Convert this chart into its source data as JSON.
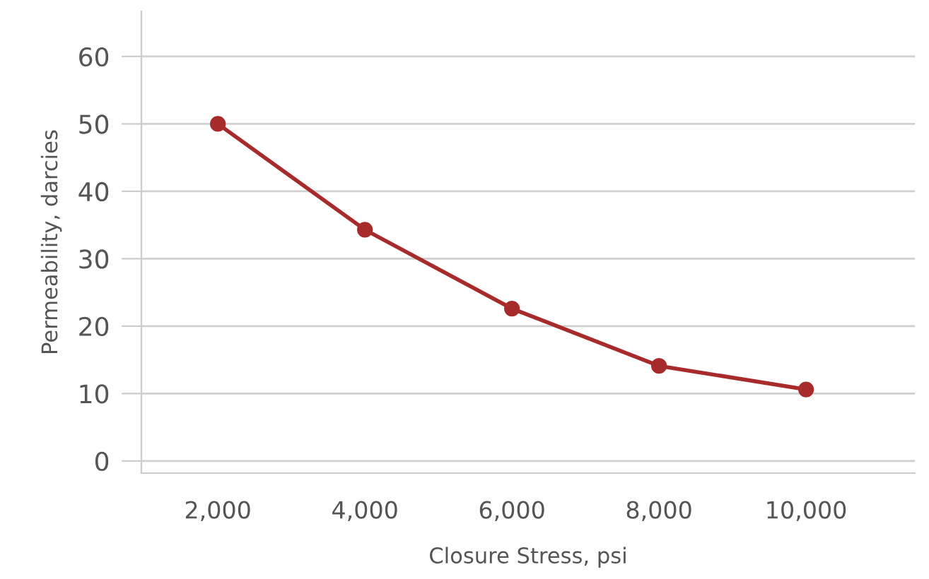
{
  "chart_data": {
    "type": "line",
    "xlabel": "Closure Stress, psi",
    "ylabel": "Permeability, darcies",
    "categories": [
      "2,000",
      "4,000",
      "6,000",
      "8,000",
      "10,000"
    ],
    "series": [
      {
        "color": "#a82b2b",
        "values": [
          50,
          34.3,
          22.6,
          14.1,
          10.6
        ]
      }
    ],
    "ylim": [
      -1.8,
      66.7
    ],
    "yticks": [
      0,
      10,
      20,
      30,
      40,
      50,
      60
    ],
    "grid": "y",
    "marker": "circle",
    "line_style": "solid",
    "legend": false
  }
}
